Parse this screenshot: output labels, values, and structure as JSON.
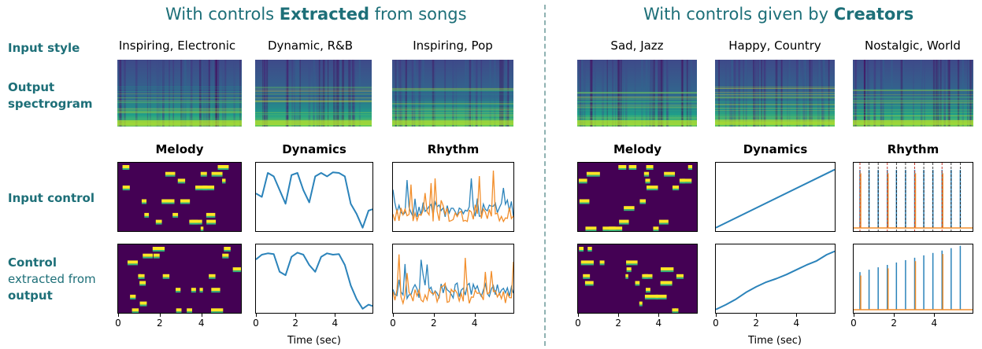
{
  "left_title": {
    "pre": "With controls ",
    "bold": "Extracted",
    "post": " from songs"
  },
  "right_title": {
    "pre": "With controls given by ",
    "bold": "Creators"
  },
  "row_labels": {
    "input_style": "Input style",
    "output_spec_1": "Output",
    "output_spec_2": "spectrogram",
    "input_control": "Input control",
    "control_1": "Control",
    "control_2": "extracted from",
    "control_3": "output"
  },
  "styles": [
    "Inspiring, Electronic",
    "Dynamic, R&B",
    "Inspiring, Pop",
    "Sad, Jazz",
    "Happy, Country",
    "Nostalgic, World"
  ],
  "control_titles": [
    "Melody",
    "Dynamics",
    "Rhythm",
    "Melody",
    "Dynamics",
    "Rhythm"
  ],
  "xticks": [
    "0",
    "2",
    "4"
  ],
  "xlabel": "Time (sec)",
  "colors": {
    "accent": "#1d6f78",
    "series_blue": "#2b83ba",
    "series_orange": "#f28e2b",
    "viridis_bg": "#440154",
    "viridis_hi": "#fde725",
    "beat_red": "#c0392b"
  },
  "chart_data": [
    {
      "type": "heatmap",
      "title": "Melody",
      "xlim": [
        0,
        5.9
      ],
      "group": "extracted",
      "row": "input"
    },
    {
      "type": "line",
      "title": "Dynamics",
      "xlim": [
        0,
        5.9
      ],
      "group": "extracted",
      "row": "input",
      "series": [
        {
          "x": [
            0,
            0.3,
            0.6,
            0.9,
            1.2,
            1.5,
            1.8,
            2.1,
            2.4,
            2.7,
            3.0,
            3.3,
            3.6,
            3.9,
            4.2,
            4.5,
            4.8,
            5.1,
            5.4,
            5.7,
            5.9
          ],
          "values": [
            0.55,
            0.5,
            0.85,
            0.8,
            0.6,
            0.4,
            0.82,
            0.85,
            0.6,
            0.42,
            0.8,
            0.85,
            0.8,
            0.86,
            0.85,
            0.8,
            0.4,
            0.25,
            0.05,
            0.3,
            0.32
          ]
        }
      ]
    },
    {
      "type": "line",
      "title": "Rhythm",
      "xlim": [
        0,
        5.9
      ],
      "group": "extracted",
      "row": "input"
    },
    {
      "type": "heatmap",
      "title": "Melody",
      "xlim": [
        0,
        5.9
      ],
      "group": "creators",
      "row": "input"
    },
    {
      "type": "line",
      "title": "Dynamics",
      "xlim": [
        0,
        5.9
      ],
      "group": "creators",
      "row": "input",
      "series": [
        {
          "x": [
            0,
            5.9
          ],
          "values": [
            0.05,
            0.9
          ]
        }
      ]
    },
    {
      "type": "line",
      "title": "Rhythm",
      "xlim": [
        0,
        5.9
      ],
      "group": "creators",
      "row": "input"
    },
    {
      "type": "heatmap",
      "title": "Melody",
      "xlim": [
        0,
        5.9
      ],
      "group": "extracted",
      "row": "output"
    },
    {
      "type": "line",
      "title": "Dynamics",
      "xlim": [
        0,
        5.9
      ],
      "group": "extracted",
      "row": "output",
      "series": [
        {
          "x": [
            0,
            0.3,
            0.6,
            0.9,
            1.2,
            1.5,
            1.8,
            2.1,
            2.4,
            2.7,
            3.0,
            3.3,
            3.6,
            3.9,
            4.2,
            4.5,
            4.8,
            5.1,
            5.4,
            5.7,
            5.9
          ],
          "values": [
            0.78,
            0.85,
            0.87,
            0.86,
            0.6,
            0.55,
            0.82,
            0.88,
            0.85,
            0.7,
            0.6,
            0.82,
            0.87,
            0.85,
            0.86,
            0.7,
            0.4,
            0.2,
            0.06,
            0.12,
            0.1
          ]
        }
      ]
    },
    {
      "type": "line",
      "title": "Rhythm",
      "xlim": [
        0,
        5.9
      ],
      "group": "extracted",
      "row": "output"
    },
    {
      "type": "heatmap",
      "title": "Melody",
      "xlim": [
        0,
        5.9
      ],
      "group": "creators",
      "row": "output"
    },
    {
      "type": "line",
      "title": "Dynamics",
      "xlim": [
        0,
        5.9
      ],
      "group": "creators",
      "row": "output",
      "series": [
        {
          "x": [
            0,
            0.5,
            1.0,
            1.5,
            2.0,
            2.5,
            3.0,
            3.5,
            4.0,
            4.5,
            5.0,
            5.5,
            5.9
          ],
          "values": [
            0.05,
            0.12,
            0.2,
            0.3,
            0.38,
            0.45,
            0.5,
            0.56,
            0.63,
            0.7,
            0.76,
            0.85,
            0.9
          ]
        }
      ]
    },
    {
      "type": "line",
      "title": "Rhythm",
      "xlim": [
        0,
        5.9
      ],
      "group": "creators",
      "row": "output"
    }
  ]
}
